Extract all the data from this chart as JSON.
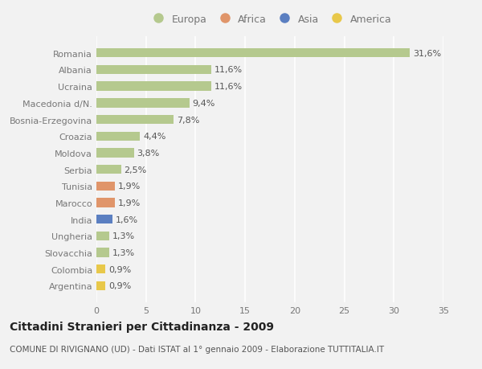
{
  "countries": [
    "Romania",
    "Albania",
    "Ucraina",
    "Macedonia d/N.",
    "Bosnia-Erzegovina",
    "Croazia",
    "Moldova",
    "Serbia",
    "Tunisia",
    "Marocco",
    "India",
    "Ungheria",
    "Slovacchia",
    "Colombia",
    "Argentina"
  ],
  "values": [
    31.6,
    11.6,
    11.6,
    9.4,
    7.8,
    4.4,
    3.8,
    2.5,
    1.9,
    1.9,
    1.6,
    1.3,
    1.3,
    0.9,
    0.9
  ],
  "labels": [
    "31,6%",
    "11,6%",
    "11,6%",
    "9,4%",
    "7,8%",
    "4,4%",
    "3,8%",
    "2,5%",
    "1,9%",
    "1,9%",
    "1,6%",
    "1,3%",
    "1,3%",
    "0,9%",
    "0,9%"
  ],
  "continents": [
    "Europa",
    "Europa",
    "Europa",
    "Europa",
    "Europa",
    "Europa",
    "Europa",
    "Europa",
    "Africa",
    "Africa",
    "Asia",
    "Europa",
    "Europa",
    "America",
    "America"
  ],
  "colors": {
    "Europa": "#b5c98e",
    "Africa": "#e0956a",
    "Asia": "#5b7fc1",
    "America": "#e8c84a"
  },
  "legend_order": [
    "Europa",
    "Africa",
    "Asia",
    "America"
  ],
  "legend_colors": [
    "#b5c98e",
    "#e0956a",
    "#5b7fc1",
    "#e8c84a"
  ],
  "xlim": [
    0,
    35
  ],
  "xticks": [
    0,
    5,
    10,
    15,
    20,
    25,
    30,
    35
  ],
  "title": "Cittadini Stranieri per Cittadinanza - 2009",
  "subtitle": "COMUNE DI RIVIGNANO (UD) - Dati ISTAT al 1° gennaio 2009 - Elaborazione TUTTITALIA.IT",
  "bg_color": "#f2f2f2",
  "grid_color": "#ffffff",
  "bar_height": 0.55,
  "label_fontsize": 8,
  "tick_fontsize": 8,
  "title_fontsize": 10,
  "subtitle_fontsize": 7.5
}
